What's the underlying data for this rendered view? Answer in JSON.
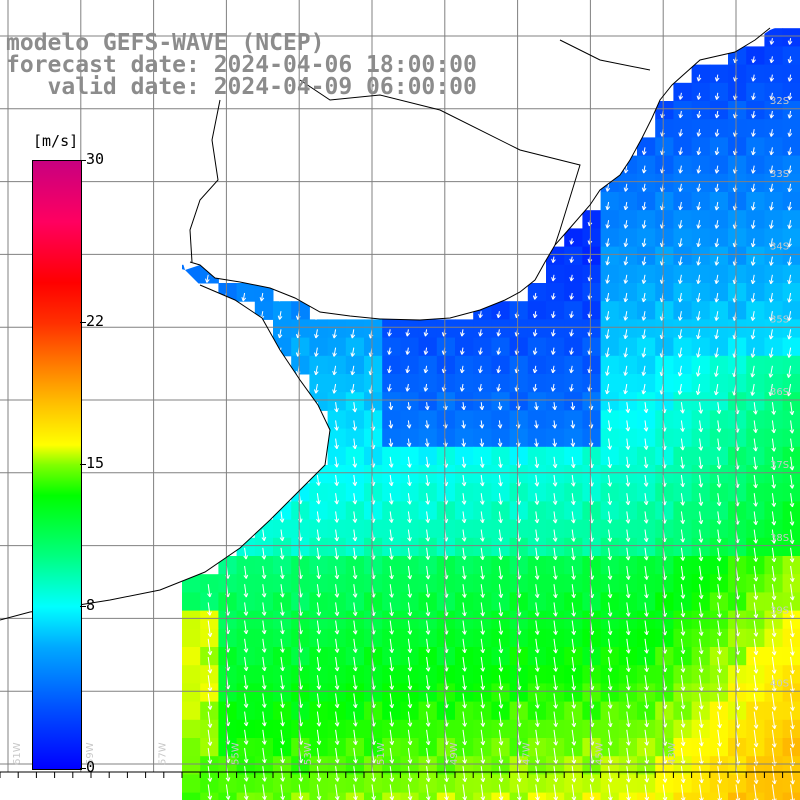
{
  "title": {
    "line1": "modelo GEFS-WAVE (NCEP)",
    "line2": "forecast date: 2024-04-06 18:00:00",
    "line3": "   valid date: 2024-04-09 06:00:00"
  },
  "colorbar": {
    "units": "[m/s]",
    "ticks": [
      "30",
      "22",
      "15",
      "8",
      "0"
    ],
    "tick_values": [
      30,
      22,
      15,
      8,
      0
    ],
    "range": [
      0,
      30
    ]
  },
  "map": {
    "lon_labels": [
      "61W",
      "59W",
      "57W",
      "55W",
      "53W",
      "51W",
      "49W",
      "47W",
      "45W",
      "43W"
    ],
    "lat_labels": [
      "32S",
      "33S",
      "34S",
      "35S",
      "36S",
      "37S",
      "38S",
      "39S",
      "40S"
    ],
    "grid": true,
    "colors": {
      "land": "#ffffff",
      "grid": "#808080",
      "coast": "#000000",
      "arrow": "#ffffff"
    }
  }
}
